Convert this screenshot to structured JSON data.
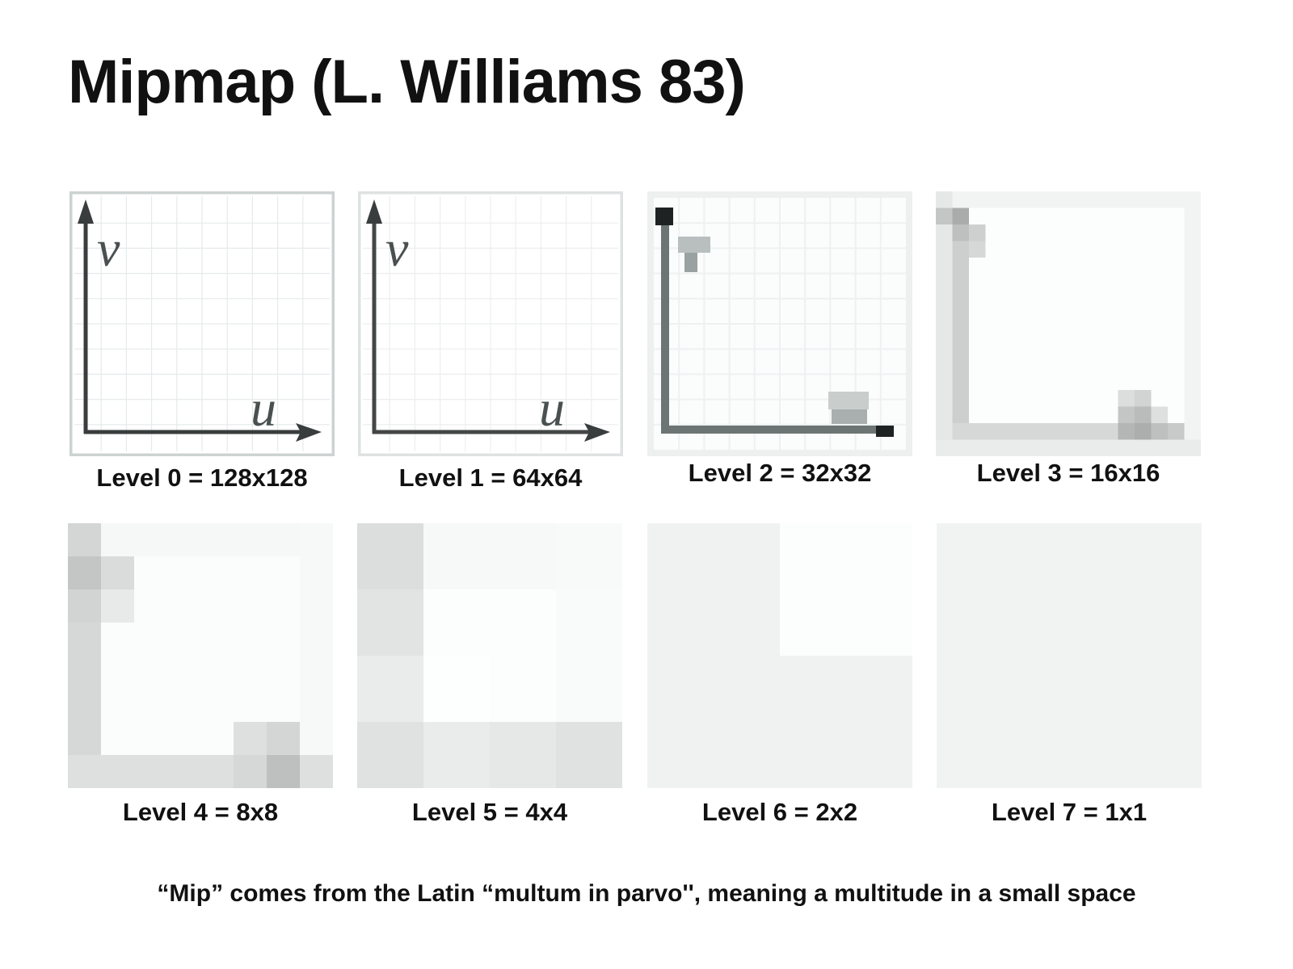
{
  "slide": {
    "title": "Mipmap (L. Williams 83)",
    "footnote": "“Mip” comes from the Latin “multum in parvo'', meaning a multitude in a small space"
  },
  "levels": [
    {
      "label": "Level 0 = 128x128"
    },
    {
      "label": "Level 1 = 64x64"
    },
    {
      "label": "Level 2 = 32x32"
    },
    {
      "label": "Level 3 = 16x16"
    },
    {
      "label": "Level 4 = 8x8"
    },
    {
      "label": "Level 5 = 4x4"
    },
    {
      "label": "Level 6 = 2x2"
    },
    {
      "label": "Level 7 = 1x1"
    }
  ],
  "texture": {
    "axis_labels": {
      "u": "u",
      "v": "v"
    }
  }
}
